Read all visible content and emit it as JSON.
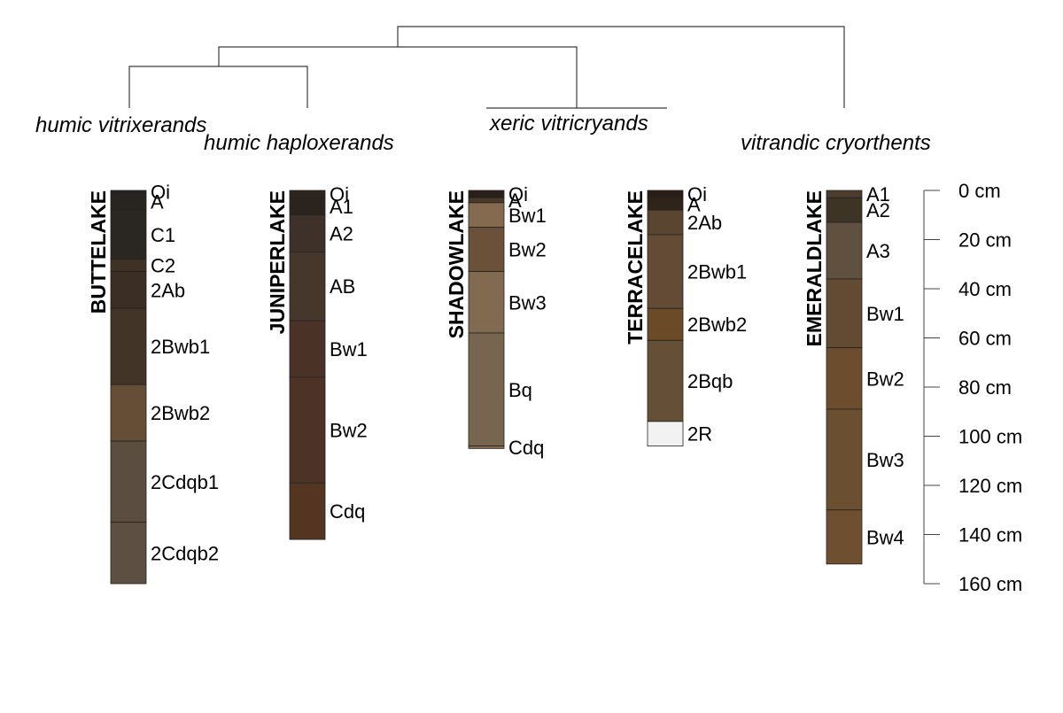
{
  "dendrogram": {
    "groups": [
      "humic vitrixerands",
      "humic haploxerands",
      "xeric vitricryands",
      "vitrandic cryorthents"
    ]
  },
  "depth_axis": {
    "ticks": [
      "0 cm",
      "20 cm",
      "40 cm",
      "60 cm",
      "80 cm",
      "100 cm",
      "120 cm",
      "140 cm",
      "160 cm"
    ],
    "tick_values_cm": [
      0,
      20,
      40,
      60,
      80,
      100,
      120,
      140,
      160
    ]
  },
  "profiles": [
    {
      "name": "BUTTELAKE",
      "horizons": [
        {
          "label": "Oi",
          "top": 0,
          "bottom": 1,
          "color": "#262320"
        },
        {
          "label": "A",
          "top": 1,
          "bottom": 8,
          "color": "#282521"
        },
        {
          "label": "C1",
          "top": 8,
          "bottom": 28,
          "color": "#2a2723"
        },
        {
          "label": "C2",
          "top": 28,
          "bottom": 33,
          "color": "#3f3224"
        },
        {
          "label": "2Ab",
          "top": 33,
          "bottom": 48,
          "color": "#3b2e24"
        },
        {
          "label": "2Bwb1",
          "top": 48,
          "bottom": 79,
          "color": "#433428"
        },
        {
          "label": "2Bwb2",
          "top": 79,
          "bottom": 102,
          "color": "#654d36"
        },
        {
          "label": "2Cdqb1",
          "top": 102,
          "bottom": 135,
          "color": "#5b4d40"
        },
        {
          "label": "2Cdqb2",
          "top": 135,
          "bottom": 160,
          "color": "#5d4f41"
        }
      ]
    },
    {
      "name": "JUNIPERLAKE",
      "horizons": [
        {
          "label": "Oi",
          "top": 0,
          "bottom": 3,
          "color": "#2d241d"
        },
        {
          "label": "A1",
          "top": 3,
          "bottom": 10,
          "color": "#2b231d"
        },
        {
          "label": "A2",
          "top": 10,
          "bottom": 25,
          "color": "#3e3129"
        },
        {
          "label": "AB",
          "top": 25,
          "bottom": 53,
          "color": "#46372d"
        },
        {
          "label": "Bw1",
          "top": 53,
          "bottom": 76,
          "color": "#4a3226"
        },
        {
          "label": "Bw2",
          "top": 76,
          "bottom": 119,
          "color": "#4c3325"
        },
        {
          "label": "Cdq",
          "top": 119,
          "bottom": 142,
          "color": "#533621"
        }
      ]
    },
    {
      "name": "SHADOWLAKE",
      "horizons": [
        {
          "label": "Oi",
          "top": 0,
          "bottom": 3,
          "color": "#2b2019"
        },
        {
          "label": "A",
          "top": 3,
          "bottom": 5,
          "color": "#4a3a2c"
        },
        {
          "label": "Bw1",
          "top": 5,
          "bottom": 15,
          "color": "#846a4f"
        },
        {
          "label": "Bw2",
          "top": 15,
          "bottom": 33,
          "color": "#6b5139"
        },
        {
          "label": "Bw3",
          "top": 33,
          "bottom": 58,
          "color": "#826a51"
        },
        {
          "label": "Bq",
          "top": 58,
          "bottom": 104,
          "color": "#77654f"
        },
        {
          "label": "Cdq",
          "top": 104,
          "bottom": 105,
          "color": "#8a6a4c"
        }
      ]
    },
    {
      "name": "TERRACELAKE",
      "horizons": [
        {
          "label": "Oi",
          "top": 0,
          "bottom": 3,
          "color": "#2a1f17"
        },
        {
          "label": "A",
          "top": 3,
          "bottom": 8,
          "color": "#2f241a"
        },
        {
          "label": "2Ab",
          "top": 8,
          "bottom": 18,
          "color": "#5a4530"
        },
        {
          "label": "2Bwb1",
          "top": 18,
          "bottom": 48,
          "color": "#634b35"
        },
        {
          "label": "2Bwb2",
          "top": 48,
          "bottom": 61,
          "color": "#6b4a28"
        },
        {
          "label": "2Bqb",
          "top": 61,
          "bottom": 94,
          "color": "#655037"
        },
        {
          "label": "2R",
          "top": 94,
          "bottom": 104,
          "color": "#f2f2f2"
        }
      ]
    },
    {
      "name": "EMERALDLAKE",
      "horizons": [
        {
          "label": "A1",
          "top": 0,
          "bottom": 3,
          "color": "#4b3c2e"
        },
        {
          "label": "A2",
          "top": 3,
          "bottom": 13,
          "color": "#3e3426"
        },
        {
          "label": "A3",
          "top": 13,
          "bottom": 36,
          "color": "#5f5040"
        },
        {
          "label": "Bw1",
          "top": 36,
          "bottom": 64,
          "color": "#624a33"
        },
        {
          "label": "Bw2",
          "top": 64,
          "bottom": 89,
          "color": "#6c4d2e"
        },
        {
          "label": "Bw3",
          "top": 89,
          "bottom": 130,
          "color": "#6b4f31"
        },
        {
          "label": "Bw4",
          "top": 130,
          "bottom": 152,
          "color": "#6e4f2f"
        }
      ]
    }
  ]
}
